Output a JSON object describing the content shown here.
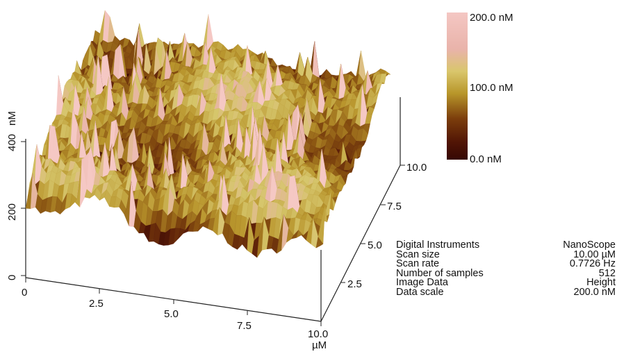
{
  "colorbar": {
    "top_label": "200.0 nM",
    "mid_label": "100.0 nM",
    "bottom_label": "0.0 nM",
    "gradient": [
      "#f4c7c3",
      "#e8b0a8",
      "#d8c46a",
      "#c0a22c",
      "#8a5010",
      "#5a1c06",
      "#3a0804"
    ]
  },
  "z_axis": {
    "unit": "nM",
    "ticks": [
      "400",
      "200",
      "0"
    ]
  },
  "x_axis": {
    "unit": "µM",
    "ticks": [
      "0",
      "2.5",
      "5.0",
      "7.5",
      "10.0"
    ]
  },
  "y_axis": {
    "ticks": [
      "2.5",
      "5.0",
      "7.5",
      "10.0"
    ]
  },
  "info": {
    "labels": [
      "Digital Instruments",
      "Scan size",
      "Scan rate",
      "Number of samples",
      "Image Data",
      "Data scale"
    ],
    "values": [
      "NanoScope",
      "10.00 µM",
      "0.7726 Hz",
      "512",
      "Height",
      "200.0 nM"
    ]
  }
}
